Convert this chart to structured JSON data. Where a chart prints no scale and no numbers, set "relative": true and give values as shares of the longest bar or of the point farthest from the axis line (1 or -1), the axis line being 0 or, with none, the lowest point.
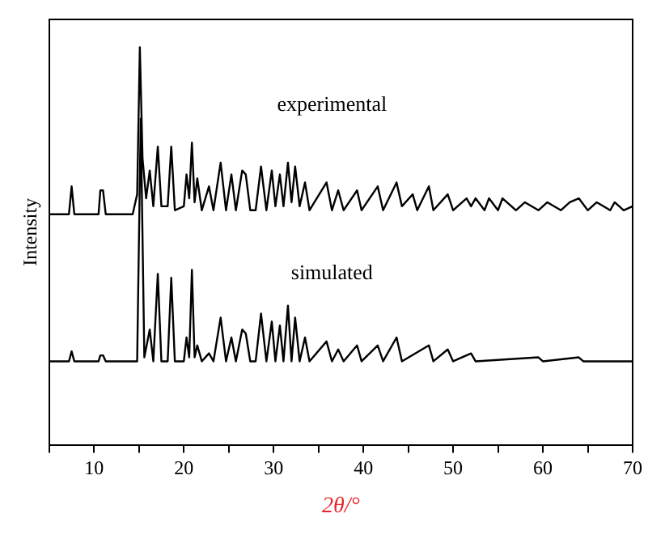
{
  "chart_data": {
    "type": "line",
    "relative": true,
    "xlabel": "2θ/°",
    "ylabel": "Intensity",
    "xlim": [
      5,
      70
    ],
    "xticks": [
      {
        "value": 5,
        "label": null
      },
      10,
      {
        "value": 15,
        "label": null
      },
      20,
      {
        "value": 25,
        "label": null
      },
      30,
      {
        "value": 35,
        "label": null
      },
      40,
      {
        "value": 45,
        "label": null
      },
      50,
      {
        "value": 55,
        "label": null
      },
      60,
      {
        "value": 65,
        "label": null
      },
      70
    ],
    "grid": false,
    "legend": false,
    "marker": "none",
    "line_style": "solid",
    "series": [
      {
        "name": "experimental",
        "color": "#000000",
        "x": [
          5,
          7.2,
          7.5,
          7.8,
          10.5,
          10.7,
          11,
          11.3,
          14.3,
          14.8,
          15.1,
          15.4,
          15.8,
          16.2,
          16.6,
          17.1,
          17.5,
          18.2,
          18.6,
          19,
          20,
          20.3,
          20.6,
          20.9,
          21.2,
          21.5,
          22,
          22.8,
          23.3,
          24.1,
          24.7,
          25.3,
          25.8,
          26.5,
          26.9,
          27.4,
          28,
          28.6,
          29.2,
          29.8,
          30.2,
          30.7,
          31.1,
          31.6,
          32,
          32.4,
          32.9,
          33.5,
          34,
          35.9,
          36.5,
          37.2,
          37.8,
          39.3,
          39.8,
          41.6,
          42.2,
          43.7,
          44.3,
          45.5,
          46,
          47.3,
          47.8,
          49.4,
          50,
          51.5,
          52,
          52.5,
          53.5,
          54,
          55,
          55.5,
          57,
          58,
          59.5,
          60.5,
          62,
          63,
          64,
          65,
          66,
          67.5,
          68,
          69,
          70
        ],
        "values": [
          0.58,
          0.58,
          0.65,
          0.58,
          0.58,
          0.64,
          0.64,
          0.58,
          0.58,
          0.63,
          1,
          0.72,
          0.62,
          0.69,
          0.6,
          0.75,
          0.6,
          0.6,
          0.75,
          0.59,
          0.6,
          0.68,
          0.62,
          0.76,
          0.61,
          0.67,
          0.59,
          0.65,
          0.59,
          0.71,
          0.59,
          0.68,
          0.59,
          0.69,
          0.68,
          0.59,
          0.59,
          0.7,
          0.59,
          0.69,
          0.6,
          0.68,
          0.6,
          0.71,
          0.61,
          0.7,
          0.6,
          0.66,
          0.59,
          0.66,
          0.59,
          0.64,
          0.59,
          0.64,
          0.59,
          0.65,
          0.59,
          0.66,
          0.6,
          0.63,
          0.59,
          0.65,
          0.59,
          0.63,
          0.59,
          0.62,
          0.6,
          0.62,
          0.59,
          0.62,
          0.59,
          0.62,
          0.59,
          0.61,
          0.59,
          0.61,
          0.59,
          0.61,
          0.62,
          0.59,
          0.61,
          0.59,
          0.61,
          0.59,
          0.6
        ]
      },
      {
        "name": "simulated",
        "color": "#000000",
        "x": [
          5,
          7.2,
          7.5,
          7.8,
          10.5,
          10.7,
          11,
          11.3,
          14.8,
          15.2,
          15.6,
          16.2,
          16.6,
          17.1,
          17.5,
          18.2,
          18.6,
          19,
          20,
          20.3,
          20.6,
          20.9,
          21.2,
          21.5,
          22,
          22.8,
          23.3,
          24.1,
          24.7,
          25.3,
          25.8,
          26.5,
          26.9,
          27.4,
          28,
          28.6,
          29.2,
          29.8,
          30.2,
          30.7,
          31.1,
          31.6,
          32,
          32.4,
          32.9,
          33.5,
          34,
          35.9,
          36.5,
          37.2,
          37.8,
          39.3,
          39.8,
          41.6,
          42.2,
          43.7,
          44.3,
          47.3,
          47.8,
          49.4,
          50,
          52,
          52.5,
          59.5,
          60,
          64,
          64.5,
          70
        ],
        "values": [
          0.21,
          0.21,
          0.235,
          0.21,
          0.21,
          0.225,
          0.225,
          0.21,
          0.21,
          0.82,
          0.22,
          0.29,
          0.21,
          0.43,
          0.21,
          0.21,
          0.42,
          0.21,
          0.21,
          0.27,
          0.22,
          0.44,
          0.22,
          0.25,
          0.21,
          0.23,
          0.21,
          0.32,
          0.21,
          0.27,
          0.21,
          0.29,
          0.28,
          0.21,
          0.21,
          0.33,
          0.21,
          0.31,
          0.21,
          0.3,
          0.21,
          0.35,
          0.21,
          0.32,
          0.21,
          0.27,
          0.21,
          0.26,
          0.21,
          0.24,
          0.21,
          0.25,
          0.21,
          0.25,
          0.21,
          0.27,
          0.21,
          0.25,
          0.21,
          0.24,
          0.21,
          0.23,
          0.21,
          0.22,
          0.21,
          0.22,
          0.21,
          0.21
        ]
      }
    ]
  }
}
